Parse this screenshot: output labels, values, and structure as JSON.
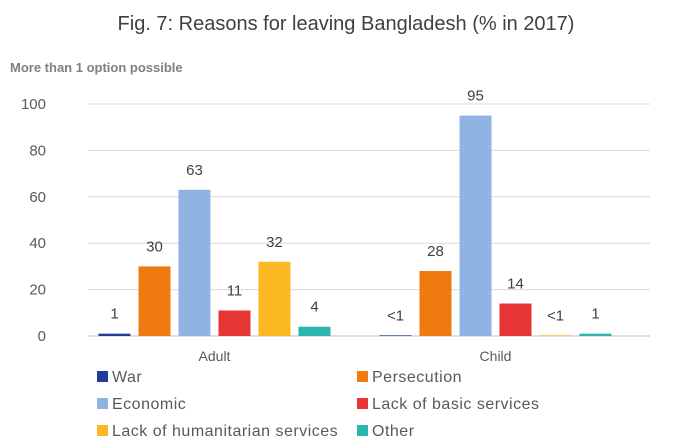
{
  "chart_data": {
    "type": "bar",
    "title": "Fig. 7: Reasons for leaving Bangladesh (% in 2017)",
    "subtitle": "More than 1 option possible",
    "xlabel": "",
    "ylabel": "",
    "ylim": [
      0,
      100
    ],
    "yticks": [
      0,
      20,
      40,
      60,
      80,
      100
    ],
    "grid": true,
    "legend_position": "bottom",
    "categories": [
      "Adult",
      "Child"
    ],
    "series": [
      {
        "name": "War",
        "color": "#1f3d99",
        "values": [
          1,
          0.3
        ],
        "labels": [
          "1",
          "<1"
        ]
      },
      {
        "name": "Persecution",
        "color": "#f07a12",
        "values": [
          30,
          28
        ],
        "labels": [
          "30",
          "28"
        ]
      },
      {
        "name": "Economic",
        "color": "#8fb4e3",
        "values": [
          63,
          95
        ],
        "labels": [
          "63",
          "95"
        ]
      },
      {
        "name": "Lack of basic services",
        "color": "#e53635",
        "values": [
          11,
          14
        ],
        "labels": [
          "11",
          "14"
        ]
      },
      {
        "name": "Lack of humanitarian services",
        "color": "#fbb821",
        "values": [
          32,
          0.3
        ],
        "labels": [
          "32",
          "<1"
        ]
      },
      {
        "name": "Other",
        "color": "#2cb4b0",
        "values": [
          4,
          1
        ],
        "labels": [
          "4",
          "1"
        ]
      }
    ]
  }
}
